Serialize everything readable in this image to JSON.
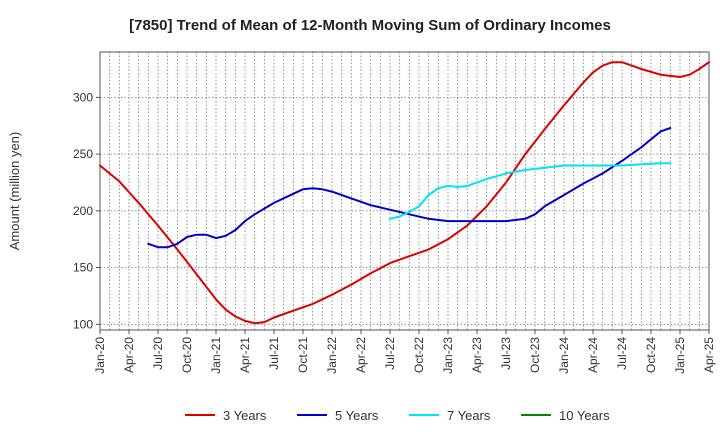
{
  "chart_data": {
    "type": "line",
    "title": "[7850]  Trend of Mean of 12-Month Moving Sum of Ordinary Incomes",
    "xlabel": "",
    "ylabel": "Amount (million yen)",
    "ylim": [
      95,
      340
    ],
    "yticks": [
      100,
      150,
      200,
      250,
      300
    ],
    "xlim": [
      0,
      63
    ],
    "x_tick_labels": [
      "Jan-20",
      "Apr-20",
      "Jul-20",
      "Oct-20",
      "Jan-21",
      "Apr-21",
      "Jul-21",
      "Oct-21",
      "Jan-22",
      "Apr-22",
      "Jul-22",
      "Oct-22",
      "Jan-23",
      "Apr-23",
      "Jul-23",
      "Oct-23",
      "Jan-24",
      "Apr-24",
      "Jul-24",
      "Oct-24",
      "Jan-25",
      "Apr-25"
    ],
    "grid": true,
    "legend_position": "bottom",
    "series": [
      {
        "name": "3 Years",
        "color": "#dd0000",
        "points": [
          [
            0,
            240
          ],
          [
            2,
            226
          ],
          [
            4,
            207
          ],
          [
            6,
            187
          ],
          [
            8,
            166
          ],
          [
            10,
            144
          ],
          [
            12,
            122
          ],
          [
            13,
            113
          ],
          [
            14,
            107
          ],
          [
            15,
            103
          ],
          [
            16,
            101
          ],
          [
            17,
            102
          ],
          [
            18,
            106
          ],
          [
            20,
            112
          ],
          [
            22,
            118
          ],
          [
            24,
            126
          ],
          [
            26,
            135
          ],
          [
            28,
            145
          ],
          [
            30,
            154
          ],
          [
            32,
            160
          ],
          [
            34,
            166
          ],
          [
            36,
            175
          ],
          [
            38,
            187
          ],
          [
            40,
            204
          ],
          [
            42,
            225
          ],
          [
            44,
            250
          ],
          [
            46,
            272
          ],
          [
            48,
            293
          ],
          [
            50,
            313
          ],
          [
            51,
            322
          ],
          [
            52,
            328
          ],
          [
            53,
            331
          ],
          [
            54,
            331
          ],
          [
            55,
            328
          ],
          [
            56,
            325
          ],
          [
            58,
            320
          ],
          [
            60,
            318
          ],
          [
            61,
            320
          ],
          [
            62,
            325
          ],
          [
            63,
            331
          ]
        ]
      },
      {
        "name": "5 Years",
        "color": "#0000cc",
        "points": [
          [
            5,
            171
          ],
          [
            6,
            168
          ],
          [
            7,
            168
          ],
          [
            8,
            171
          ],
          [
            9,
            177
          ],
          [
            10,
            179
          ],
          [
            11,
            179
          ],
          [
            12,
            176
          ],
          [
            13,
            178
          ],
          [
            14,
            183
          ],
          [
            15,
            191
          ],
          [
            16,
            197
          ],
          [
            18,
            207
          ],
          [
            20,
            215
          ],
          [
            21,
            219
          ],
          [
            22,
            220
          ],
          [
            23,
            219
          ],
          [
            24,
            217
          ],
          [
            26,
            211
          ],
          [
            28,
            205
          ],
          [
            30,
            201
          ],
          [
            32,
            197
          ],
          [
            34,
            193
          ],
          [
            36,
            191
          ],
          [
            38,
            191
          ],
          [
            40,
            191
          ],
          [
            42,
            191
          ],
          [
            44,
            193
          ],
          [
            45,
            197
          ],
          [
            46,
            204
          ],
          [
            48,
            214
          ],
          [
            50,
            224
          ],
          [
            52,
            233
          ],
          [
            54,
            244
          ],
          [
            56,
            256
          ],
          [
            58,
            270
          ],
          [
            59,
            273
          ]
        ]
      },
      {
        "name": "7 Years",
        "color": "#00e5ee",
        "points": [
          [
            30,
            193
          ],
          [
            31,
            195
          ],
          [
            32,
            199
          ],
          [
            33,
            204
          ],
          [
            34,
            214
          ],
          [
            35,
            220
          ],
          [
            36,
            222
          ],
          [
            37,
            221
          ],
          [
            38,
            222
          ],
          [
            40,
            228
          ],
          [
            42,
            233
          ],
          [
            44,
            236
          ],
          [
            46,
            238
          ],
          [
            48,
            240
          ],
          [
            50,
            240
          ],
          [
            52,
            240
          ],
          [
            54,
            240
          ],
          [
            56,
            241
          ],
          [
            58,
            242
          ],
          [
            59,
            242
          ]
        ]
      },
      {
        "name": "10 Years",
        "color": "#008800",
        "points": []
      }
    ]
  }
}
